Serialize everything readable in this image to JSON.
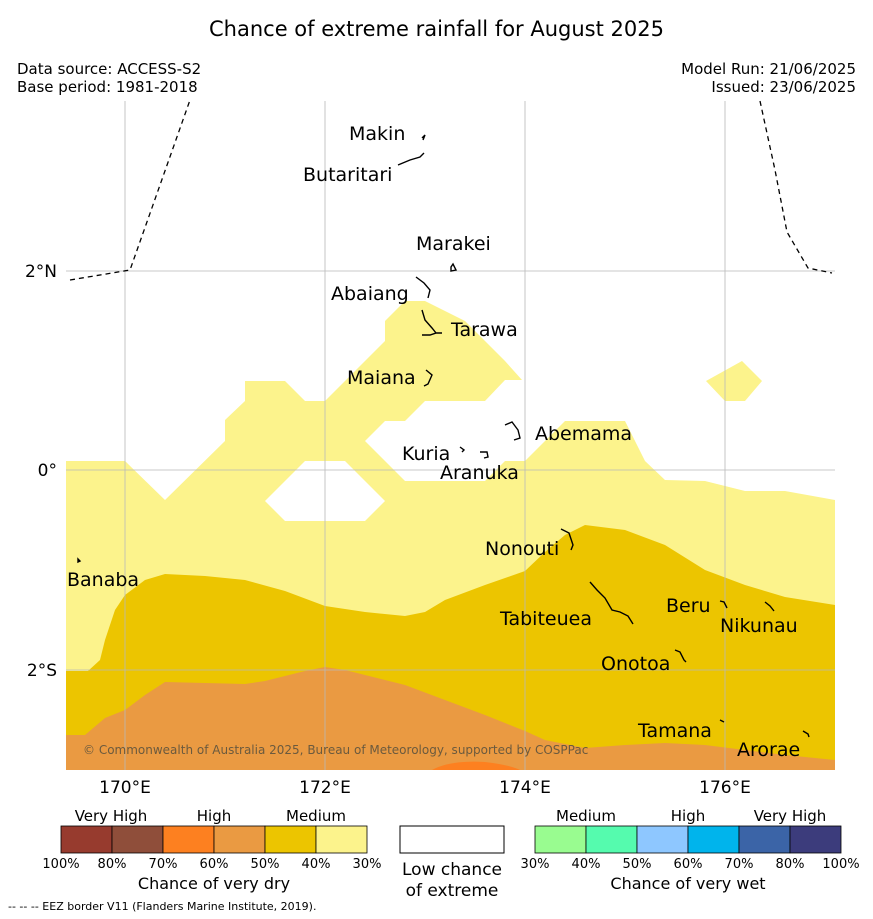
{
  "title": "Chance of extreme rainfall for August 2025",
  "meta": {
    "data_source": "Data source: ACCESS-S2",
    "base_period": "Base period: 1981-2018",
    "model_run": "Model Run: 21/06/2025",
    "issued": "Issued: 23/06/2025"
  },
  "map": {
    "lon_range": [
      169.4,
      177.1
    ],
    "lat_range": [
      -3.0,
      3.5
    ],
    "grid": {
      "lon": [
        170,
        172,
        174,
        176
      ],
      "lat": [
        2,
        0,
        -2
      ]
    },
    "lon_labels": [
      "170°E",
      "172°E",
      "174°E",
      "176°E"
    ],
    "lat_labels": [
      "2°N",
      "0°",
      "2°S"
    ],
    "copyright": "© Commonwealth of Australia 2025, Bureau of Meteorology, supported by COSPPac",
    "places": [
      "Makin",
      "Butaritari",
      "Marakei",
      "Abaiang",
      "Tarawa",
      "Maiana",
      "Abemama",
      "Kuria",
      "Aranuka",
      "Nonouti",
      "Banaba",
      "Tabiteuea",
      "Beru",
      "Nikunau",
      "Onotoa",
      "Tamana",
      "Arorae"
    ],
    "colors": {
      "dry_30_40": "#fcf38c",
      "dry_40_50": "#ecc500",
      "dry_50_60": "#ea9a42",
      "dry_60_70": "#fd8020"
    }
  },
  "legend": {
    "dry": {
      "categories": [
        "Very High",
        "High",
        "Medium"
      ],
      "ticks": [
        "100%",
        "80%",
        "70%",
        "60%",
        "50%",
        "40%",
        "30%"
      ],
      "colors": [
        "#973b2e",
        "#8f4e3a",
        "#fd8020",
        "#ea9a42",
        "#ecc500",
        "#fcf38c"
      ],
      "title": "Chance of very dry"
    },
    "low": {
      "line1": "Low chance",
      "line2": "of extreme"
    },
    "wet": {
      "categories": [
        "Medium",
        "High",
        "Very High"
      ],
      "ticks": [
        "30%",
        "40%",
        "50%",
        "60%",
        "70%",
        "80%",
        "100%"
      ],
      "colors": [
        "#99fc90",
        "#55fbae",
        "#8ec7ff",
        "#00b4ec",
        "#3b64a7",
        "#3c3c7c"
      ],
      "title": "Chance of very wet"
    }
  },
  "footnote": "--  --  -- EEZ border V11 (Flanders Marine Institute, 2019)."
}
